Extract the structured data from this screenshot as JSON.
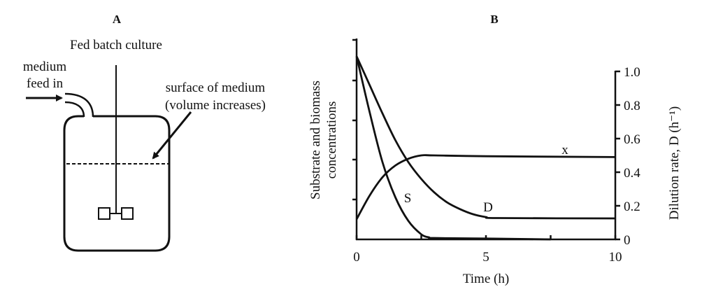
{
  "panel_a": {
    "letter": "A",
    "title": "Fed batch culture",
    "feed_label_line1": "medium",
    "feed_label_line2": "feed in",
    "surface_label_line1": "surface of medium",
    "surface_label_line2": "(volume increases)"
  },
  "panel_b": {
    "letter": "B"
  },
  "chart_data": {
    "type": "line",
    "xlabel": "Time (h)",
    "ylabel_left_line1": "Substrate and biomass",
    "ylabel_left_line2": "concentrations",
    "ylabel_right": "Dilution rate, D (h⁻¹)",
    "xlim": [
      0,
      10
    ],
    "ylim_right": [
      0,
      1.0
    ],
    "x_ticks": [
      0,
      2.5,
      5,
      7.5,
      10
    ],
    "x_tick_labels": [
      "0",
      "",
      "5",
      "",
      "10"
    ],
    "right_ticks": [
      0,
      0.2,
      0.4,
      0.6,
      0.8,
      1.0
    ],
    "right_tick_labels": [
      "0",
      "0.2",
      "0.4",
      "0.6",
      "0.8",
      "1.0"
    ],
    "grid": false,
    "series": [
      {
        "name": "x",
        "x": [
          0,
          0.5,
          1,
          1.5,
          2,
          2.5,
          3,
          5,
          10
        ],
        "y": [
          0.12,
          0.26,
          0.37,
          0.44,
          0.48,
          0.5,
          0.5,
          0.495,
          0.49
        ]
      },
      {
        "name": "S",
        "x": [
          0,
          0.5,
          1,
          1.5,
          2,
          2.5,
          2.8,
          3,
          5,
          7.5
        ],
        "y": [
          1.09,
          0.76,
          0.46,
          0.25,
          0.11,
          0.03,
          0.012,
          0.008,
          0.005,
          0
        ]
      },
      {
        "name": "D",
        "x": [
          0,
          0.5,
          1,
          1.5,
          2,
          2.5,
          3,
          3.5,
          4,
          4.5,
          5,
          5.5,
          10
        ],
        "y": [
          1.09,
          0.92,
          0.75,
          0.59,
          0.46,
          0.36,
          0.28,
          0.22,
          0.18,
          0.15,
          0.133,
          0.127,
          0.125
        ]
      }
    ]
  }
}
